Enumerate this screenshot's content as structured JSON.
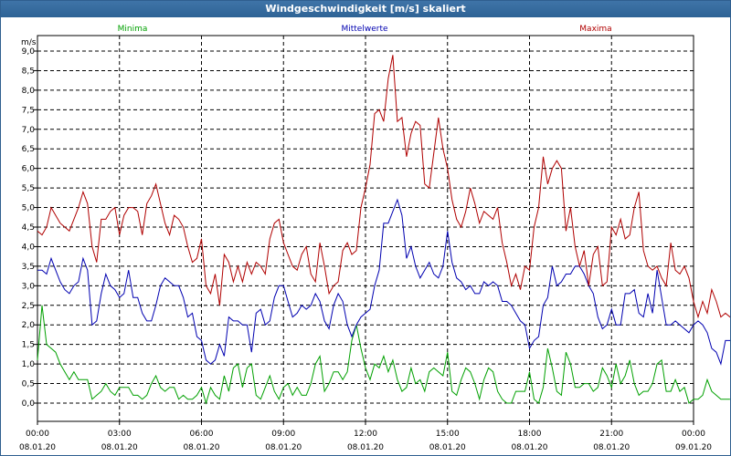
{
  "window": {
    "title": "Windgeschwindigkeit [m/s] skaliert"
  },
  "colors": {
    "minima": "#00a000",
    "mittelwerte": "#0000b0",
    "maxima": "#b00000",
    "grid": "#000000",
    "titlebar": "#2e6395"
  },
  "chart_data": {
    "type": "line",
    "title": "Windgeschwindigkeit [m/s] skaliert",
    "ylabel": "m/s",
    "xlabel": "",
    "ylim": [
      -0.5,
      9.2
    ],
    "xlim": [
      0,
      144
    ],
    "yticks": [
      "9,0",
      "8,5",
      "8,0",
      "7,5",
      "7,0",
      "6,5",
      "6,0",
      "5,5",
      "5,0",
      "4,5",
      "4,0",
      "3,5",
      "3,0",
      "2,5",
      "2,0",
      "1,5",
      "1,0",
      "0,5",
      "0,0"
    ],
    "xticks": [
      {
        "time": "00:00",
        "date": "08.01.20"
      },
      {
        "time": "03:00",
        "date": "08.01.20"
      },
      {
        "time": "06:00",
        "date": "08.01.20"
      },
      {
        "time": "09:00",
        "date": "08.01.20"
      },
      {
        "time": "12:00",
        "date": "08.01.20"
      },
      {
        "time": "15:00",
        "date": "08.01.20"
      },
      {
        "time": "18:00",
        "date": "08.01.20"
      },
      {
        "time": "21:00",
        "date": "08.01.20"
      },
      {
        "time": "00:00",
        "date": "09.01.20"
      }
    ],
    "grid": true,
    "legend_position": "top",
    "series": [
      {
        "name": "Minima",
        "values": [
          1.1,
          2.5,
          1.5,
          1.4,
          1.3,
          1.0,
          0.8,
          0.6,
          0.8,
          0.6,
          0.6,
          0.6,
          0.1,
          0.2,
          0.3,
          0.5,
          0.3,
          0.2,
          0.4,
          0.4,
          0.4,
          0.2,
          0.2,
          0.1,
          0.2,
          0.5,
          0.7,
          0.4,
          0.3,
          0.4,
          0.4,
          0.1,
          0.2,
          0.1,
          0.1,
          0.2,
          0.4,
          0.0,
          0.4,
          0.2,
          0.1,
          0.7,
          0.3,
          0.9,
          1.0,
          0.4,
          0.9,
          1.0,
          0.2,
          0.1,
          0.4,
          0.7,
          0.3,
          0.1,
          0.4,
          0.5,
          0.2,
          0.4,
          0.2,
          0.2,
          0.5,
          1.0,
          1.2,
          0.3,
          0.5,
          0.8,
          0.8,
          0.6,
          0.8,
          1.6,
          2.0,
          1.4,
          0.9,
          0.6,
          1.0,
          0.9,
          1.2,
          0.8,
          1.1,
          0.6,
          0.3,
          0.4,
          0.9,
          0.5,
          0.6,
          0.3,
          0.8,
          0.9,
          0.8,
          0.7,
          1.3,
          0.3,
          0.2,
          0.6,
          0.9,
          0.8,
          0.5,
          0.1,
          0.6,
          0.9,
          0.8,
          0.3,
          0.1,
          0.0,
          0.0,
          0.3,
          0.3,
          0.3,
          0.8,
          0.1,
          0.0,
          0.4,
          1.4,
          0.9,
          0.3,
          0.2,
          1.3,
          1.0,
          0.4,
          0.4,
          0.5,
          0.5,
          0.3,
          0.4,
          0.9,
          0.7,
          0.4,
          1.0,
          0.5,
          0.7,
          1.1,
          0.5,
          0.2,
          0.3,
          0.3,
          0.5,
          1.0,
          1.1,
          0.3,
          0.3,
          0.6,
          0.3,
          0.4,
          0.0,
          0.1,
          0.1,
          0.2,
          0.6,
          0.3,
          0.2,
          0.1,
          0.1,
          0.1
        ],
        "color": "#00a000"
      },
      {
        "name": "Mittelwerte",
        "values": [
          3.4,
          3.4,
          3.3,
          3.7,
          3.4,
          3.1,
          2.9,
          2.8,
          3.0,
          3.1,
          3.7,
          3.4,
          2.0,
          2.1,
          2.8,
          3.3,
          3.0,
          2.9,
          2.7,
          2.8,
          3.4,
          2.7,
          2.7,
          2.3,
          2.1,
          2.1,
          2.5,
          3.0,
          3.2,
          3.1,
          3.0,
          3.0,
          2.7,
          2.2,
          2.3,
          1.7,
          1.6,
          1.1,
          1.0,
          1.1,
          1.5,
          1.2,
          2.2,
          2.1,
          2.1,
          2.0,
          2.0,
          1.3,
          2.3,
          2.4,
          2.0,
          2.1,
          2.7,
          3.0,
          3.0,
          2.6,
          2.2,
          2.3,
          2.5,
          2.4,
          2.5,
          2.8,
          2.6,
          2.1,
          1.9,
          2.5,
          2.8,
          2.6,
          2.0,
          1.7,
          2.0,
          2.2,
          2.3,
          2.4,
          3.0,
          3.4,
          4.6,
          4.6,
          4.9,
          5.2,
          4.8,
          3.7,
          4.0,
          3.5,
          3.2,
          3.4,
          3.6,
          3.3,
          3.2,
          3.5,
          4.4,
          3.6,
          3.2,
          3.1,
          2.9,
          3.0,
          2.8,
          2.8,
          3.1,
          3.0,
          3.1,
          3.0,
          2.6,
          2.6,
          2.5,
          2.3,
          2.1,
          2.0,
          1.4,
          1.6,
          1.7,
          2.5,
          2.7,
          3.5,
          3.0,
          3.1,
          3.3,
          3.3,
          3.5,
          3.5,
          3.3,
          3.0,
          2.8,
          2.2,
          1.9,
          2.0,
          2.4,
          2.0,
          2.0,
          2.8,
          2.8,
          2.9,
          2.3,
          2.2,
          2.8,
          2.3,
          3.4,
          2.7,
          2.0,
          2.0,
          2.1,
          2.0,
          1.9,
          1.8,
          2.0,
          2.1,
          2.0,
          1.8,
          1.4,
          1.3,
          1.0,
          1.6,
          1.6,
          1.5,
          1.6,
          1.4,
          1.5
        ],
        "color": "#0000b0"
      },
      {
        "name": "Maxima",
        "values": [
          4.4,
          4.3,
          4.5,
          5.0,
          4.8,
          4.6,
          4.5,
          4.4,
          4.7,
          5.0,
          5.4,
          5.1,
          4.0,
          3.6,
          4.7,
          4.7,
          4.9,
          5.0,
          4.3,
          4.8,
          5.0,
          5.0,
          4.9,
          4.3,
          5.1,
          5.3,
          5.6,
          5.1,
          4.6,
          4.3,
          4.8,
          4.7,
          4.5,
          4.0,
          3.6,
          3.7,
          4.2,
          3.0,
          2.8,
          3.3,
          2.5,
          3.8,
          3.6,
          3.1,
          3.5,
          3.1,
          3.6,
          3.3,
          3.6,
          3.5,
          3.3,
          4.2,
          4.6,
          4.7,
          4.1,
          3.8,
          3.5,
          3.4,
          3.8,
          4.0,
          3.3,
          3.1,
          4.1,
          3.5,
          2.8,
          3.0,
          3.1,
          3.9,
          4.1,
          3.8,
          3.9,
          5.0,
          5.5,
          6.1,
          7.4,
          7.5,
          7.2,
          8.3,
          8.9,
          7.2,
          7.3,
          6.3,
          6.9,
          7.2,
          7.1,
          5.6,
          5.5,
          6.4,
          7.3,
          6.5,
          6.0,
          5.2,
          4.7,
          4.5,
          4.9,
          5.5,
          5.1,
          4.6,
          4.9,
          4.8,
          4.7,
          5.0,
          4.1,
          3.6,
          3.0,
          3.3,
          2.9,
          3.5,
          3.4,
          4.5,
          5.0,
          6.3,
          5.6,
          6.0,
          6.2,
          6.0,
          4.4,
          5.0,
          4.0,
          3.5,
          3.9,
          3.0,
          3.8,
          4.0,
          3.0,
          3.1,
          4.5,
          4.3,
          4.7,
          4.2,
          4.3,
          5.0,
          5.4,
          3.9,
          3.5,
          3.4,
          3.5,
          3.2,
          3.0,
          4.1,
          3.4,
          3.3,
          3.5,
          3.2,
          2.6,
          2.2,
          2.6,
          2.3,
          2.9,
          2.6,
          2.2,
          2.3,
          2.2,
          2.2,
          2.2
        ]
      }
    ]
  }
}
